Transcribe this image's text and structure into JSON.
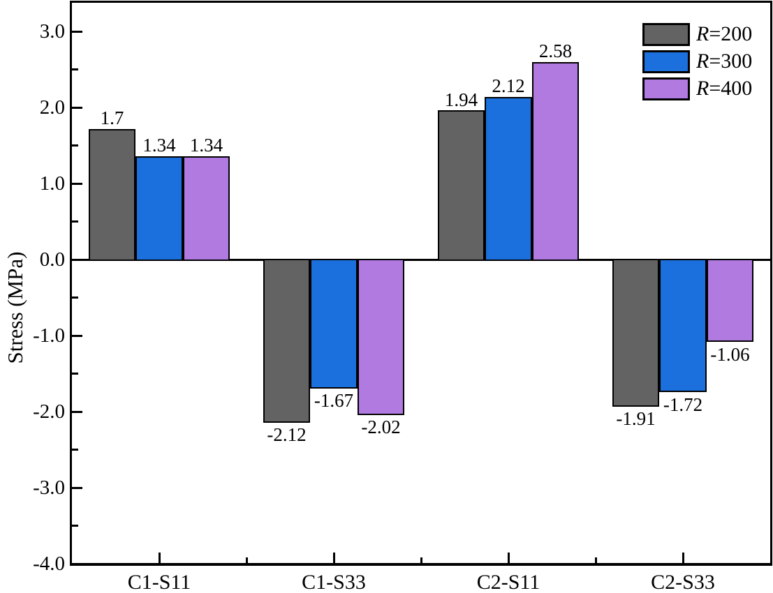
{
  "chart_data": {
    "type": "bar",
    "title": "",
    "xlabel": "",
    "ylabel": "Stress (MPa)",
    "categories": [
      "C1-S11",
      "C1-S33",
      "C2-S11",
      "C2-S33"
    ],
    "series": [
      {
        "name": "R=200",
        "color": "#636363",
        "values": [
          1.7,
          -2.12,
          1.94,
          -1.91
        ]
      },
      {
        "name": "R=300",
        "color": "#1B70DD",
        "values": [
          1.34,
          -1.67,
          2.12,
          -1.72
        ]
      },
      {
        "name": "R=400",
        "color": "#B07AE0",
        "values": [
          1.34,
          -2.02,
          2.58,
          -1.06
        ]
      }
    ],
    "data_labels": [
      [
        "1.7",
        "-2.12",
        "1.94",
        "-1.91"
      ],
      [
        "1.34",
        "-1.67",
        "2.12",
        "-1.72"
      ],
      [
        "1.34",
        "-2.02",
        "2.58",
        "-1.06"
      ]
    ],
    "ylim": [
      -4.0,
      3.38
    ],
    "yticks_major": [
      3.0,
      2.0,
      1.0,
      0.0,
      -1.0,
      -2.0,
      -3.0,
      -4.0
    ],
    "ytick_labels": [
      "3.0",
      "2.0",
      "1.0",
      "0.0",
      "-1.0",
      "-2.0",
      "-3.0",
      "-4.0"
    ],
    "yticks_minor": [
      2.5,
      1.5,
      0.5,
      -0.5,
      -1.5,
      -2.5,
      -3.5
    ],
    "legend_position": "top-right",
    "grid": false,
    "axis_color": "#000000",
    "bar_edge_color": "#000000"
  }
}
